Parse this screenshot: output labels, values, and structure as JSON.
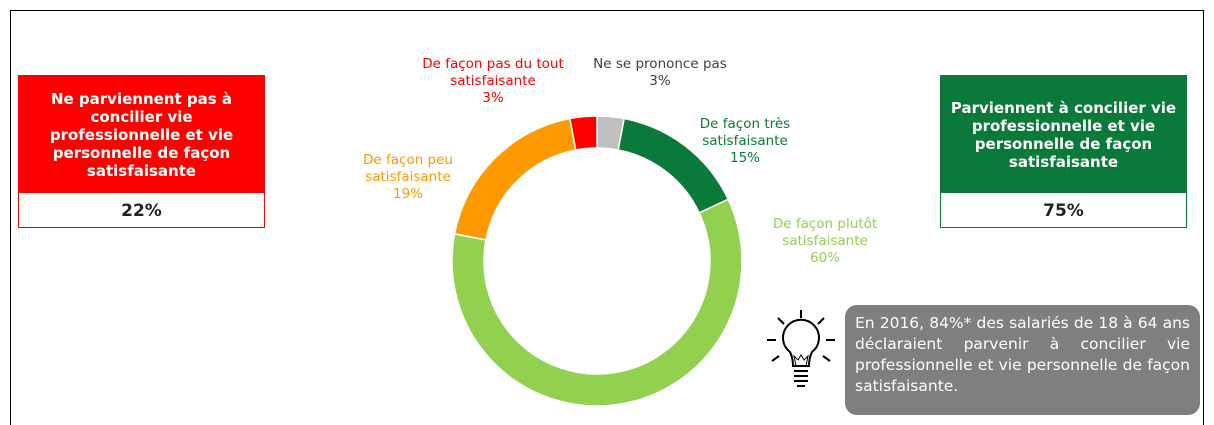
{
  "chart_data": {
    "type": "pie",
    "donut": true,
    "categories": [
      "Ne se prononce pas",
      "De façon très satisfaisante",
      "De façon plutôt satisfaisante",
      "De façon peu satisfaisante",
      "De façon pas du tout satisfaisante"
    ],
    "values": [
      3,
      15,
      60,
      19,
      3
    ],
    "value_labels": [
      "3%",
      "15%",
      "60%",
      "19%",
      "3%"
    ],
    "colors": [
      "#c0c0c0",
      "#0a7a3a",
      "#92d050",
      "#ff9900",
      "#ff0000"
    ],
    "label_colors": [
      "#404040",
      "#0a7a3a",
      "#92d050",
      "#ff9900",
      "#ff0000"
    ]
  },
  "boxes": [
    {
      "title": "Ne parviennent pas à concilier vie professionnelle et vie personnelle de façon satisfaisante",
      "value": "22%",
      "color": "#ff0000"
    },
    {
      "title": "Parviennent à concilier vie professionnelle et vie personnelle de façon satisfaisante",
      "value": "75%",
      "color": "#0a7a3a"
    }
  ],
  "note": "En 2016, 84%* des salariés de 18 à 64 ans déclaraient parvenir à concilier vie professionnelle et vie personnelle de façon satisfaisante."
}
